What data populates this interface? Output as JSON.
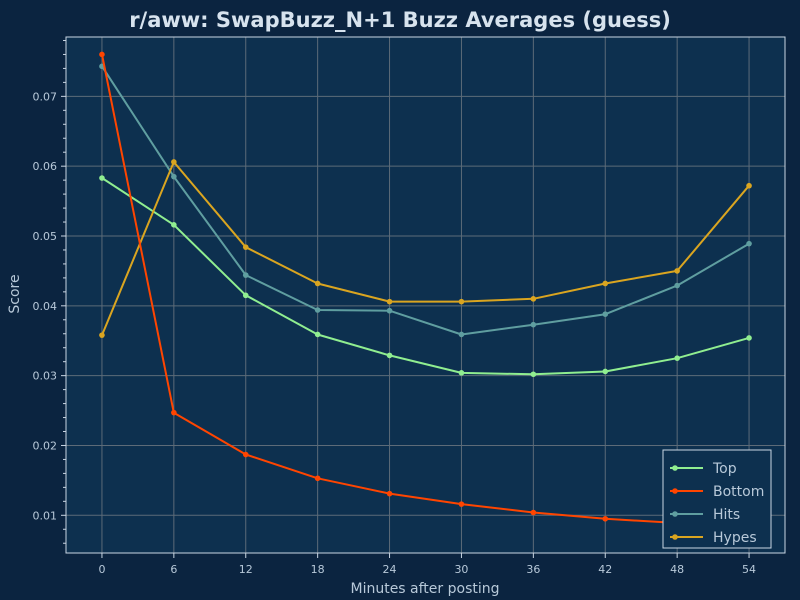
{
  "chart_data": {
    "type": "line",
    "title": "r/aww: SwapBuzz_N+1 Buzz Averages (guess)",
    "xlabel": "Minutes after posting",
    "ylabel": "Score",
    "x": [
      0,
      6,
      12,
      18,
      24,
      30,
      36,
      42,
      48,
      54
    ],
    "xticks": [
      0,
      6,
      12,
      18,
      24,
      30,
      36,
      42,
      48,
      54
    ],
    "xtick_labels": [
      "0",
      "6",
      "12",
      "18",
      "24",
      "30",
      "36",
      "42",
      "48",
      "54"
    ],
    "yticks": [
      0.01,
      0.02,
      0.03,
      0.04,
      0.05,
      0.06,
      0.07
    ],
    "ytick_labels": [
      "0.01",
      "0.02",
      "0.03",
      "0.04",
      "0.05",
      "0.06",
      "0.07"
    ],
    "xlim": [
      -3,
      57
    ],
    "ylim": [
      0.0046,
      0.0785
    ],
    "grid": true,
    "legend_position": "lower-right",
    "series": [
      {
        "name": "Top",
        "color": "#90ee90",
        "values": [
          0.0583,
          0.0516,
          0.0415,
          0.0359,
          0.0329,
          0.0304,
          0.0302,
          0.0306,
          0.0325,
          0.0354
        ]
      },
      {
        "name": "Bottom",
        "color": "#ff4500",
        "values": [
          0.076,
          0.0247,
          0.0187,
          0.0153,
          0.0131,
          0.0116,
          0.0104,
          0.0095,
          0.0089,
          0.0085
        ]
      },
      {
        "name": "Hits",
        "color": "#5f9ea0",
        "values": [
          0.0743,
          0.0585,
          0.0444,
          0.0394,
          0.0393,
          0.0359,
          0.0373,
          0.0388,
          0.0429,
          0.0489
        ]
      },
      {
        "name": "Hypes",
        "color": "#daa520",
        "values": [
          0.0358,
          0.0606,
          0.0484,
          0.0432,
          0.0406,
          0.0406,
          0.041,
          0.0432,
          0.045,
          0.0572
        ]
      }
    ]
  }
}
